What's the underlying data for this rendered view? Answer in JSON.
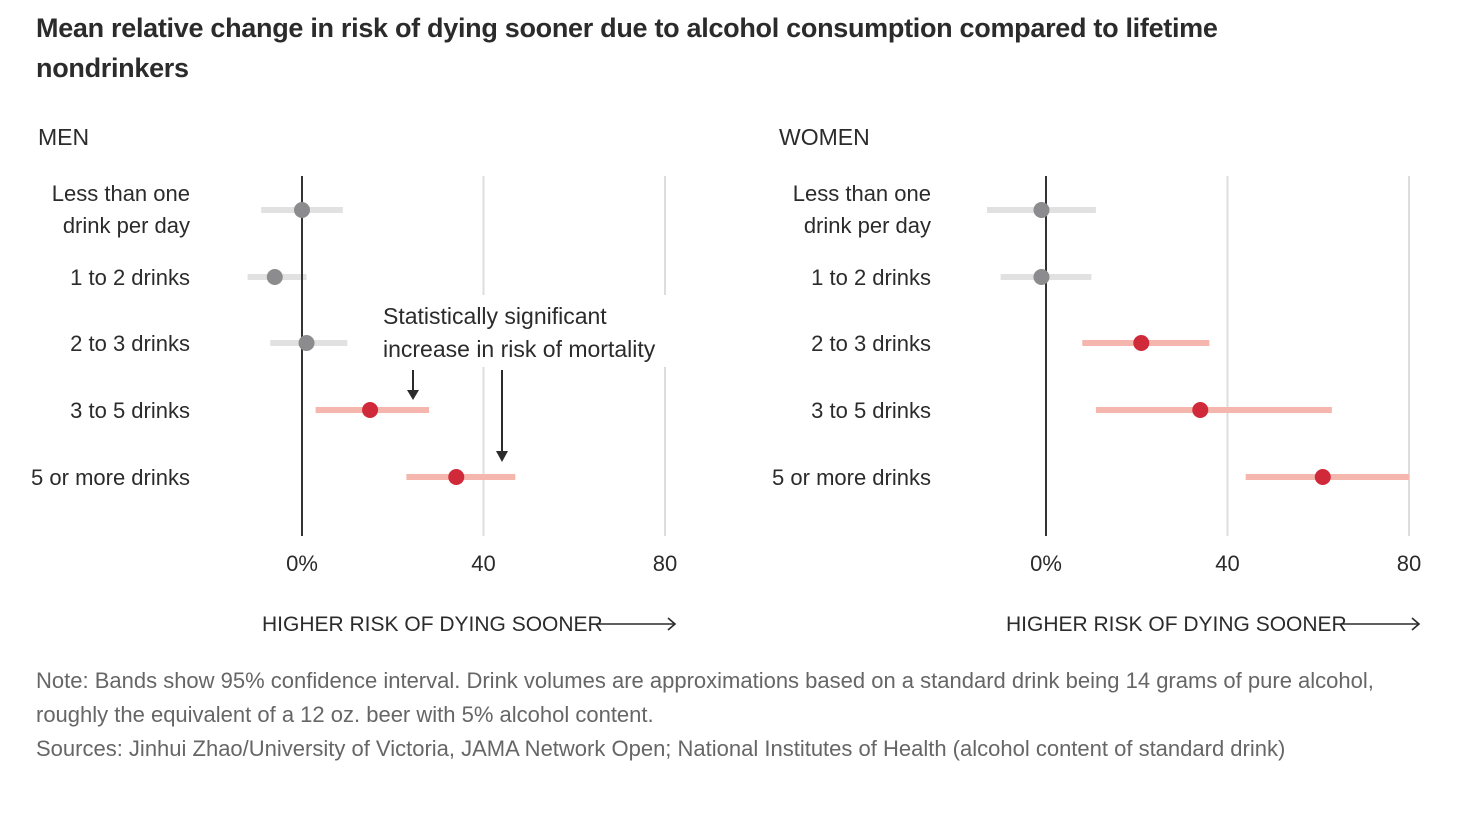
{
  "title": "Mean relative change in risk of dying sooner due to alcohol consumption compared to lifetime nondrinkers",
  "chart_data": [
    {
      "type": "forest",
      "panel": "MEN",
      "xlabel": "HIGHER RISK OF DYING SOONER",
      "xlim": [
        -15,
        80
      ],
      "xticks": [
        0,
        40,
        80
      ],
      "xtick_labels": [
        "0%",
        "40",
        "80"
      ],
      "grid": true,
      "categories": [
        [
          "Less than one",
          "drink per day"
        ],
        [
          "1 to 2 drinks"
        ],
        [
          "2 to 3 drinks"
        ],
        [
          "3 to 5 drinks"
        ],
        [
          "5 or more drinks"
        ]
      ],
      "values": [
        0,
        -6,
        1,
        15,
        34
      ],
      "ci_low": [
        -9,
        -12,
        -7,
        3,
        23
      ],
      "ci_high": [
        9,
        1,
        10,
        28,
        47
      ],
      "significant": [
        false,
        false,
        false,
        true,
        true
      ],
      "annotation": [
        "Statistically significant",
        "increase in risk of mortality"
      ]
    },
    {
      "type": "forest",
      "panel": "WOMEN",
      "xlabel": "HIGHER RISK OF DYING SOONER",
      "xlim": [
        -15,
        80
      ],
      "xticks": [
        0,
        40,
        80
      ],
      "xtick_labels": [
        "0%",
        "40",
        "80"
      ],
      "grid": true,
      "categories": [
        [
          "Less than one",
          "drink per day"
        ],
        [
          "1 to 2 drinks"
        ],
        [
          "2 to 3 drinks"
        ],
        [
          "3 to 5 drinks"
        ],
        [
          "5 or more drinks"
        ]
      ],
      "values": [
        -1,
        -1,
        21,
        34,
        61
      ],
      "ci_low": [
        -13,
        -10,
        8,
        11,
        44
      ],
      "ci_high": [
        11,
        10,
        36,
        63,
        80
      ],
      "significant": [
        false,
        false,
        true,
        true,
        true
      ]
    }
  ],
  "colors": {
    "sig_dot": "#d0293a",
    "sig_band": "#f5b7ad",
    "nonsig_dot": "#8c8c8e",
    "nonsig_band": "#e1e1e1",
    "zero_line": "#333333",
    "grid": "#dddddd"
  },
  "note": "Note: Bands show 95% confidence interval. Drink volumes are approximations based on a standard drink being 14 grams of pure alcohol, roughly the equivalent of a 12 oz. beer with 5% alcohol content.",
  "sources": "Sources: Jinhui Zhao/University of Victoria, JAMA Network Open; National Institutes of Health (alcohol content of standard drink)"
}
